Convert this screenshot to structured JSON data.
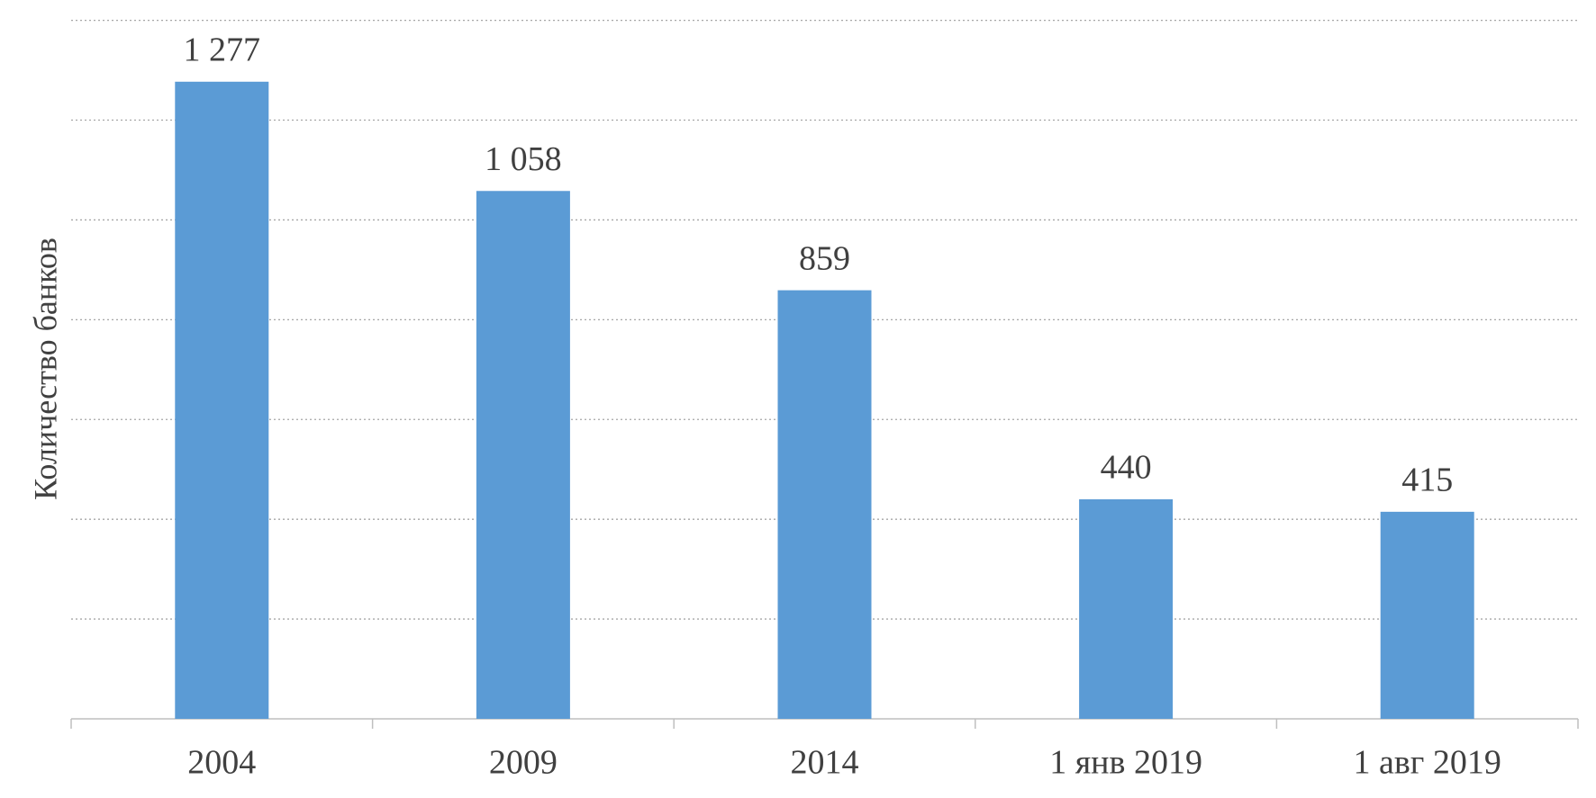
{
  "chart_data": {
    "type": "bar",
    "y_label": "Количество банков",
    "categories": [
      "2004",
      "2009",
      "2014",
      "1 янв 2019",
      "1 авг 2019"
    ],
    "values": [
      1277,
      1058,
      859,
      440,
      415
    ],
    "value_labels": [
      "1 277",
      "1 058",
      "859",
      "440",
      "415"
    ],
    "color": "#5b9bd5",
    "ylim": [
      0,
      1400
    ],
    "yticks": [
      0,
      200,
      400,
      600,
      800,
      1000,
      1200,
      1400
    ],
    "grid": true
  }
}
